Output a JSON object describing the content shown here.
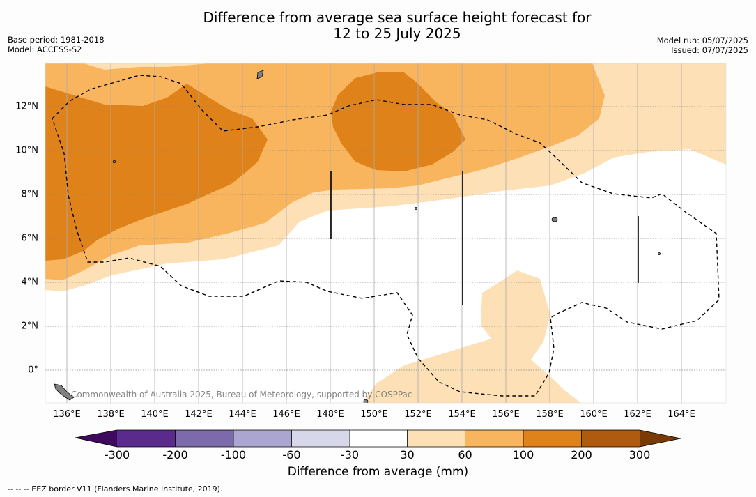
{
  "title_line1": "Difference from average sea surface height forecast for",
  "title_line2": "12 to 25 July 2025",
  "meta_left": {
    "base_period": "Base period: 1981-2018",
    "model": "Model: ACCESS-S2"
  },
  "meta_right": {
    "model_run": "Model run: 05/07/2025",
    "issued": "Issued: 07/07/2025"
  },
  "map": {
    "x_ticks": [
      "136°E",
      "138°E",
      "140°E",
      "142°E",
      "144°E",
      "146°E",
      "148°E",
      "150°E",
      "152°E",
      "154°E",
      "156°E",
      "158°E",
      "160°E",
      "162°E",
      "164°E"
    ],
    "y_ticks": [
      "12°N",
      "10°N",
      "8°N",
      "6°N",
      "4°N",
      "2°N",
      "0°"
    ],
    "lon_range": [
      135,
      166
    ],
    "lat_range": [
      -1.5,
      14
    ],
    "copyright": "Commonwealth of Australia 2025, Bureau of Meteorology, supported by COSPPac",
    "land_color": "#808080",
    "eez_style": "dashed black"
  },
  "colorbar": {
    "ticks": [
      "-300",
      "-200",
      "-100",
      "-60",
      "-30",
      "30",
      "60",
      "100",
      "200",
      "300"
    ],
    "colors": [
      "#3f0a5e",
      "#5a2a8c",
      "#7c6aab",
      "#aba6cf",
      "#d7d7ea",
      "#ffffff",
      "#fde0b5",
      "#f9b55e",
      "#e0821a",
      "#b05a10",
      "#7a3a06"
    ],
    "label": "Difference from average (mm)"
  },
  "footnote": "-- -- -- EEZ border V11 (Flanders Marine Institute, 2019)."
}
